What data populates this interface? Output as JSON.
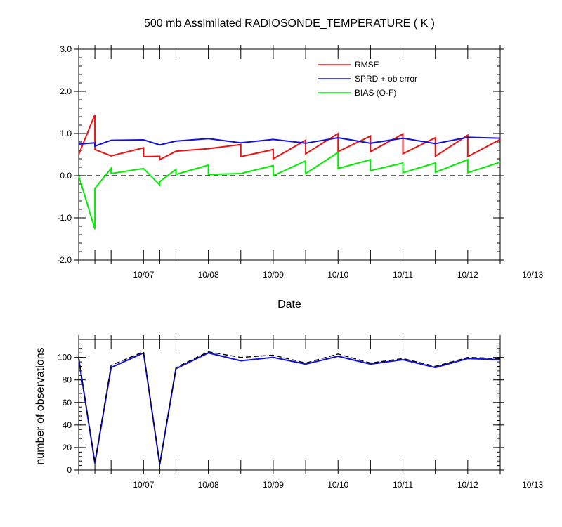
{
  "chart_data": [
    {
      "type": "line",
      "title": "500 mb Assimilated RADIOSONDE_TEMPERATURE ( K )",
      "xlabel": "Date",
      "ylabel": "",
      "x_ticks": [
        "10/07",
        "10/08",
        "10/09",
        "10/10",
        "10/11",
        "10/12",
        "10/13"
      ],
      "xlim": [
        0,
        6.5
      ],
      "ylim": [
        -2.0,
        3.0
      ],
      "y_ticks": [
        "-2.0",
        "-1.0",
        "0.0",
        "1.0",
        "2.0",
        "3.0"
      ],
      "legend_position": "top-right",
      "grid": false,
      "zero_line": "dashed",
      "series": [
        {
          "name": "RMSE",
          "color": "#ee1111",
          "x": [
            0,
            0.25,
            0.25,
            0.5,
            1.0,
            1.0,
            1.25,
            1.25,
            1.5,
            2.0,
            2.5,
            2.5,
            3.0,
            3.0,
            3.5,
            3.5,
            4.0,
            4.0,
            4.5,
            4.5,
            5.0,
            5.0,
            5.5,
            5.5,
            6.0,
            6.0,
            6.5
          ],
          "y": [
            0.5,
            1.45,
            0.62,
            0.47,
            0.66,
            0.45,
            0.46,
            0.38,
            0.58,
            0.64,
            0.74,
            0.45,
            0.62,
            0.4,
            0.84,
            0.52,
            1.0,
            0.57,
            0.94,
            0.57,
            0.99,
            0.52,
            0.9,
            0.46,
            0.96,
            0.45,
            0.86
          ],
          "draw": [
            [
              0,
              2
            ],
            [
              2,
              6
            ],
            [
              6,
              8
            ],
            [
              8,
              11
            ],
            [
              11,
              14
            ],
            [
              14,
              16
            ],
            [
              16,
              18
            ],
            [
              18,
              20
            ],
            [
              20,
              22
            ],
            [
              22,
              24
            ],
            [
              24,
              26
            ],
            [
              26,
              27
            ]
          ]
        },
        {
          "name": "SPRD + ob error",
          "color": "#1111dd",
          "x": [
            0,
            0.25,
            0.25,
            0.5,
            1.0,
            1.25,
            1.5,
            2.0,
            2.5,
            3.0,
            3.5,
            4.0,
            4.5,
            5.0,
            5.5,
            6.0,
            6.5
          ],
          "y": [
            0.75,
            0.78,
            0.7,
            0.84,
            0.85,
            0.73,
            0.82,
            0.88,
            0.78,
            0.86,
            0.77,
            0.9,
            0.77,
            0.89,
            0.76,
            0.91,
            0.89
          ]
        },
        {
          "name": "BIAS (O-F)",
          "color": "#00ee00",
          "x": [
            0,
            0.25,
            0.25,
            0.5,
            0.5,
            1.0,
            1.25,
            1.25,
            1.5,
            1.5,
            2.0,
            2.0,
            2.5,
            3.0,
            3.0,
            3.5,
            3.5,
            4.0,
            4.0,
            4.5,
            4.5,
            5.0,
            5.0,
            5.5,
            5.5,
            6.0,
            6.0,
            6.5
          ],
          "y": [
            0.0,
            -1.27,
            -0.3,
            0.17,
            0.05,
            0.17,
            -0.22,
            -0.14,
            0.15,
            0.03,
            0.25,
            0.03,
            0.05,
            0.24,
            0.0,
            0.35,
            0.05,
            0.55,
            0.17,
            0.38,
            0.12,
            0.3,
            0.07,
            0.3,
            0.08,
            0.38,
            0.07,
            0.32
          ]
        }
      ]
    },
    {
      "type": "line",
      "title": "",
      "xlabel": "",
      "ylabel": "number of observations",
      "x_ticks": [
        "10/07",
        "10/08",
        "10/09",
        "10/10",
        "10/11",
        "10/12",
        "10/13"
      ],
      "xlim": [
        0,
        6.5
      ],
      "ylim": [
        0,
        116
      ],
      "y_ticks": [
        "0",
        "20",
        "40",
        "60",
        "80",
        "100"
      ],
      "grid": false,
      "series": [
        {
          "name": "",
          "color": "#1111dd",
          "style": "solid",
          "x": [
            0,
            0.25,
            0.5,
            1.0,
            1.25,
            1.5,
            2.0,
            2.5,
            3.0,
            3.5,
            4.0,
            4.5,
            5.0,
            5.5,
            6.0,
            6.5
          ],
          "y": [
            99,
            6,
            91,
            104,
            5,
            90,
            104,
            97,
            100,
            94,
            101,
            94,
            98,
            91,
            99,
            98
          ]
        },
        {
          "name": "",
          "color": "#000000",
          "style": "dashed",
          "x": [
            0,
            0.25,
            0.5,
            1.0,
            1.25,
            1.5,
            2.0,
            2.5,
            3.0,
            3.5,
            4.0,
            4.5,
            5.0,
            5.5,
            6.0,
            6.5
          ],
          "y": [
            100,
            7,
            93,
            105,
            5,
            91,
            105,
            100,
            102,
            95,
            103,
            95,
            99,
            92,
            100,
            99
          ]
        }
      ]
    }
  ]
}
